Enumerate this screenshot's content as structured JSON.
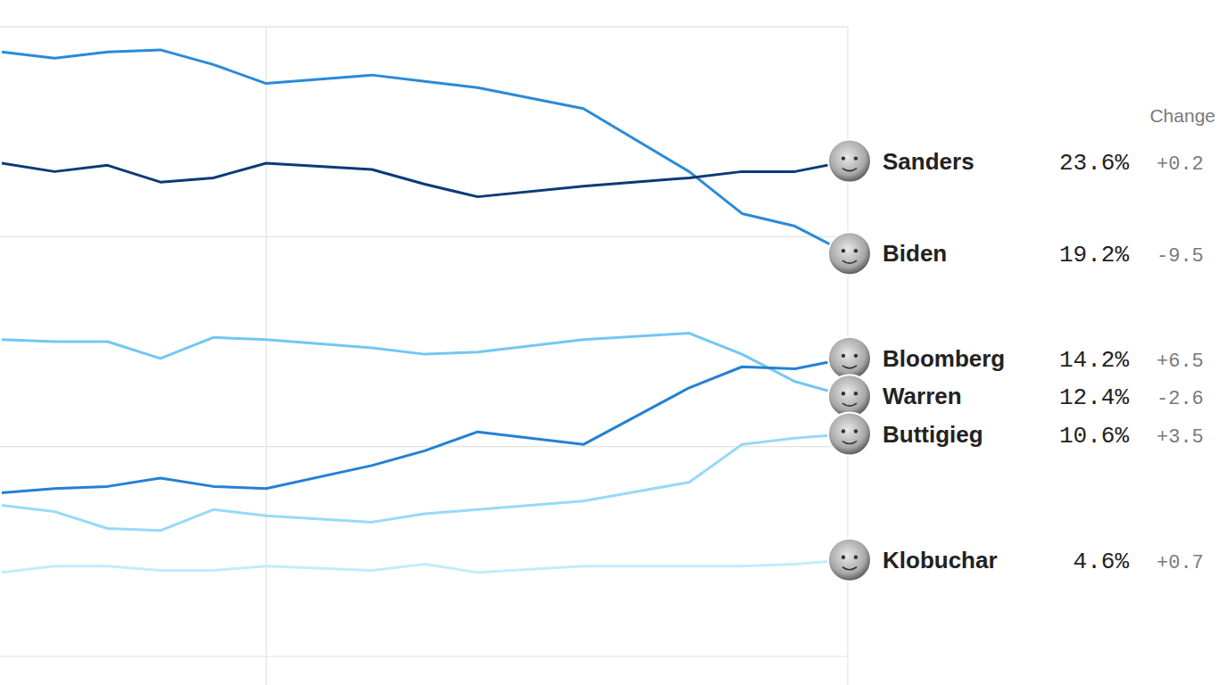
{
  "chart_data": {
    "type": "line",
    "x": [
      0,
      1,
      2,
      3,
      4,
      5,
      7,
      8,
      9,
      11,
      13,
      14,
      15,
      16
    ],
    "xlim": [
      0,
      16
    ],
    "xticks": [
      5,
      16
    ],
    "ylim": [
      0,
      30
    ],
    "yticks": [
      0,
      10,
      20,
      30
    ],
    "grid": true,
    "tick_labels": false,
    "change_header": "Change",
    "series": [
      {
        "name": "Sanders",
        "color": "#0b3a78",
        "values": [
          23.5,
          23.1,
          23.4,
          22.6,
          22.8,
          23.5,
          23.2,
          22.5,
          21.9,
          22.4,
          22.8,
          23.1,
          23.1,
          23.6
        ],
        "value_labels": [
          null,
          null,
          null,
          null,
          null,
          null,
          null,
          null,
          null,
          null,
          null,
          null,
          null,
          "23.6%"
        ],
        "change": {
          "value": 0.2,
          "label": "+0.2"
        }
      },
      {
        "name": "Biden",
        "color": "#2a8ad8",
        "values": [
          28.8,
          28.5,
          28.8,
          28.9,
          28.2,
          27.3,
          27.7,
          27.4,
          27.1,
          26.1,
          23.1,
          21.1,
          20.5,
          19.2
        ],
        "value_labels": [
          null,
          null,
          null,
          null,
          null,
          null,
          null,
          null,
          null,
          null,
          null,
          null,
          null,
          "19.2%"
        ],
        "change": {
          "value": -9.5,
          "label": "-9.5"
        }
      },
      {
        "name": "Bloomberg",
        "color": "#2480d3",
        "values": [
          7.8,
          8.0,
          8.1,
          8.5,
          8.1,
          8.0,
          9.1,
          9.8,
          10.7,
          10.1,
          12.8,
          13.8,
          13.7,
          14.2
        ],
        "value_labels": [
          null,
          null,
          null,
          null,
          null,
          null,
          null,
          null,
          null,
          null,
          null,
          null,
          null,
          "14.2%"
        ],
        "change": {
          "value": 6.5,
          "label": "+6.5"
        }
      },
      {
        "name": "Warren",
        "color": "#72c7f4",
        "values": [
          15.1,
          15.0,
          15.0,
          14.2,
          15.2,
          15.1,
          14.7,
          14.4,
          14.5,
          15.1,
          15.4,
          14.4,
          13.1,
          12.4
        ],
        "value_labels": [
          null,
          null,
          null,
          null,
          null,
          null,
          null,
          null,
          null,
          null,
          null,
          null,
          null,
          "12.4%"
        ],
        "change": {
          "value": -2.6,
          "label": "-2.6"
        }
      },
      {
        "name": "Buttigieg",
        "color": "#96daf7",
        "values": [
          7.2,
          6.9,
          6.1,
          6.0,
          7.0,
          6.7,
          6.4,
          6.8,
          7.0,
          7.4,
          8.3,
          10.1,
          10.4,
          10.6
        ],
        "value_labels": [
          null,
          null,
          null,
          null,
          null,
          null,
          null,
          null,
          null,
          null,
          null,
          null,
          null,
          "10.6%"
        ],
        "change": {
          "value": 3.5,
          "label": "+3.5"
        }
      },
      {
        "name": "Klobuchar",
        "color": "#c2ecfb",
        "values": [
          4.0,
          4.3,
          4.3,
          4.1,
          4.1,
          4.3,
          4.1,
          4.4,
          4.0,
          4.3,
          4.3,
          4.3,
          4.4,
          4.6
        ],
        "value_labels": [
          null,
          null,
          null,
          null,
          null,
          null,
          null,
          null,
          null,
          null,
          null,
          null,
          null,
          "4.6%"
        ],
        "change": {
          "value": 0.7,
          "label": "+0.7"
        }
      }
    ]
  }
}
